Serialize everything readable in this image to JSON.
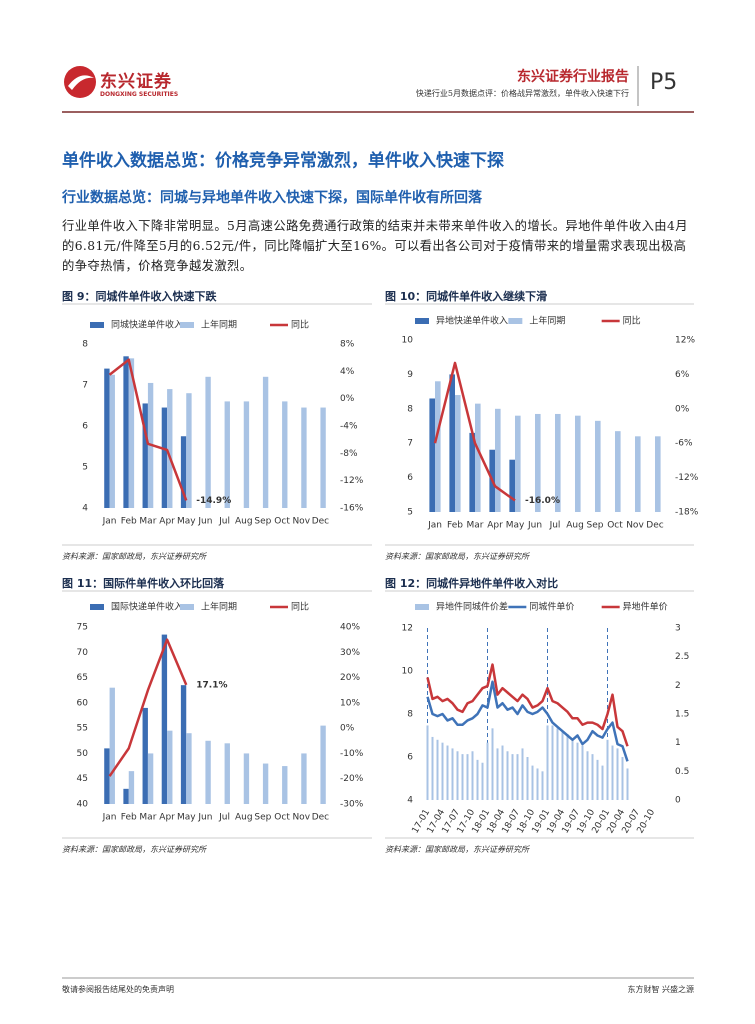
{
  "header": {
    "logo_name": "东兴证券",
    "logo_en": "DONGXING SECURITIES",
    "report_type": "东兴证券行业报告",
    "subtitle": "快递行业5月数据点评：价格战异常激烈，单件收入快速下行",
    "page": "P5"
  },
  "section_title": "单件收入数据总览：价格竞争异常激烈，单件收入快速下探",
  "subsection_title": "行业数据总览：同城与异地单件收入快速下探，国际单件收有所回落",
  "paragraph": "行业单件收入下降非常明显。5月高速公路免费通行政策的结束并未带来单件收入的增长。异地件单件收入由4月的6.81元/件降至5月的6.52元/件，同比降幅扩大至16%。可以看出各公司对于疫情带来的增量需求表现出极高的争夺热情，价格竞争越发激烈。",
  "figure_titles": [
    "图 9：同城件单件收入快速下跌",
    "图 10：同城件单件收入继续下滑",
    "图 11：国际件单件收入环比回落",
    "图 12：同城件异地件单件收入对比"
  ],
  "sources": [
    "资料来源：国家邮政局，东兴证券研究所",
    "资料来源：国家邮政局，东兴证券研究所",
    "资料来源：国家邮政局，东兴证券研究所",
    "资料来源：国家邮政局，东兴证券研究所"
  ],
  "footer": {
    "left": "敬请参阅报告结尾处的免责声明",
    "right": "东方财智 兴盛之源"
  },
  "chart_data": [
    {
      "type": "combo",
      "categories": [
        "Jan",
        "Feb",
        "Mar",
        "Apr",
        "May",
        "Jun",
        "Jul",
        "Aug",
        "Sep",
        "Oct",
        "Nov",
        "Dec"
      ],
      "ylim": [
        4,
        8
      ],
      "yticks": [
        4,
        5,
        6,
        7,
        8
      ],
      "y2lim": [
        -16,
        8
      ],
      "y2ticks": [
        {
          "value": -16,
          "label": "-16%"
        },
        {
          "value": -12,
          "label": "-12%"
        },
        {
          "value": -8,
          "label": "-8%"
        },
        {
          "value": -4,
          "label": "-4%"
        },
        {
          "value": 0,
          "label": "0%"
        },
        {
          "value": 4,
          "label": "4%"
        },
        {
          "value": 8,
          "label": "8%"
        }
      ],
      "series": [
        {
          "name": "同城快递单件收入",
          "type": "bar",
          "color": "#3b6db3",
          "values": [
            7.4,
            7.7,
            6.55,
            6.45,
            5.75,
            null,
            null,
            null,
            null,
            null,
            null,
            null
          ]
        },
        {
          "name": "上年同期",
          "type": "bar",
          "color": "#a9c3e4",
          "values": [
            7.25,
            7.65,
            7.05,
            6.9,
            6.8,
            7.2,
            6.6,
            6.6,
            7.2,
            6.6,
            6.45,
            6.45
          ]
        },
        {
          "name": "同比",
          "type": "line",
          "axis": "y2",
          "color": "#c8373a",
          "values": [
            3.5,
            5.7,
            -6.6,
            -7.5,
            -14.9,
            null,
            null,
            null,
            null,
            null,
            null,
            null
          ],
          "value_labels": [
            null,
            null,
            null,
            null,
            "-14.9%",
            null,
            null,
            null,
            null,
            null,
            null,
            null
          ]
        }
      ]
    },
    {
      "type": "combo",
      "categories": [
        "Jan",
        "Feb",
        "Mar",
        "Apr",
        "May",
        "Jun",
        "Jul",
        "Aug",
        "Sep",
        "Oct",
        "Nov",
        "Dec"
      ],
      "ylim": [
        5,
        10
      ],
      "yticks": [
        5,
        6,
        7,
        8,
        9,
        10
      ],
      "y2lim": [
        -18,
        12
      ],
      "y2ticks": [
        {
          "value": -18,
          "label": "-18%"
        },
        {
          "value": -12,
          "label": "-12%"
        },
        {
          "value": -6,
          "label": "-6%"
        },
        {
          "value": 0,
          "label": "0%"
        },
        {
          "value": 6,
          "label": "6%"
        },
        {
          "value": 12,
          "label": "12%"
        }
      ],
      "series": [
        {
          "name": "异地快递单件收入",
          "type": "bar",
          "color": "#3b6db3",
          "values": [
            8.3,
            9.0,
            7.3,
            6.81,
            6.52,
            null,
            null,
            null,
            null,
            null,
            null,
            null
          ]
        },
        {
          "name": "上年同期",
          "type": "bar",
          "color": "#a9c3e4",
          "values": [
            8.8,
            8.4,
            8.15,
            8.0,
            7.8,
            7.85,
            7.85,
            7.8,
            7.65,
            7.35,
            7.2,
            7.2
          ]
        },
        {
          "name": "同比",
          "type": "line",
          "axis": "y2",
          "color": "#c8373a",
          "values": [
            -6,
            8,
            -6,
            -13.5,
            -16.0,
            null,
            null,
            null,
            null,
            null,
            null,
            null
          ],
          "value_labels": [
            null,
            null,
            null,
            null,
            "-16.0%",
            null,
            null,
            null,
            null,
            null,
            null,
            null
          ]
        }
      ]
    },
    {
      "type": "combo",
      "categories": [
        "Jan",
        "Feb",
        "Mar",
        "Apr",
        "May",
        "Jun",
        "Jul",
        "Aug",
        "Sep",
        "Oct",
        "Nov",
        "Dec"
      ],
      "ylim": [
        40,
        75
      ],
      "yticks": [
        40,
        45,
        50,
        55,
        60,
        65,
        70,
        75
      ],
      "y2lim": [
        -30,
        40
      ],
      "y2ticks": [
        {
          "value": -30,
          "label": "-30%"
        },
        {
          "value": -20,
          "label": "-20%"
        },
        {
          "value": -10,
          "label": "-10%"
        },
        {
          "value": 0,
          "label": "0%"
        },
        {
          "value": 10,
          "label": "10%"
        },
        {
          "value": 20,
          "label": "20%"
        },
        {
          "value": 30,
          "label": "30%"
        },
        {
          "value": 40,
          "label": "40%"
        }
      ],
      "series": [
        {
          "name": "国际快递单件收入",
          "type": "bar",
          "color": "#3b6db3",
          "values": [
            51,
            43,
            59,
            73.5,
            63.5,
            null,
            null,
            null,
            null,
            null,
            null,
            null
          ]
        },
        {
          "name": "上年同期",
          "type": "bar",
          "color": "#a9c3e4",
          "values": [
            63,
            46.5,
            50,
            54.5,
            54,
            52.5,
            52,
            50,
            48,
            47.5,
            50,
            55.5
          ]
        },
        {
          "name": "同比",
          "type": "line",
          "axis": "y2",
          "color": "#c8373a",
          "values": [
            -19,
            -8,
            15,
            35,
            17.1,
            null,
            null,
            null,
            null,
            null,
            null,
            null
          ],
          "value_labels": [
            null,
            null,
            null,
            null,
            "17.1%",
            null,
            null,
            null,
            null,
            null,
            null,
            null
          ]
        }
      ]
    },
    {
      "type": "combo",
      "categories": [
        "17-01",
        null,
        null,
        "17-04",
        null,
        null,
        "17-07",
        null,
        null,
        "17-10",
        null,
        null,
        "18-01",
        null,
        null,
        "18-04",
        null,
        null,
        "18-07",
        null,
        null,
        "18-10",
        null,
        null,
        "19-01",
        null,
        null,
        "19-04",
        null,
        null,
        "19-07",
        null,
        null,
        "19-10",
        null,
        null,
        "20-01",
        null,
        null,
        "20-04",
        null,
        null,
        "20-07",
        null,
        null,
        "20-10",
        null,
        null
      ],
      "ylim": [
        4,
        12
      ],
      "yticks": [
        4,
        6,
        8,
        10,
        12
      ],
      "y2lim": [
        0,
        3
      ],
      "y2ticks": [
        0,
        0.5,
        1,
        1.5,
        2,
        2.5,
        3
      ],
      "series": [
        {
          "name": "异地件同城件价差",
          "type": "bar",
          "axis": "y2",
          "color": "#a9c3e4",
          "values": [
            1.3,
            1.1,
            1.05,
            1.0,
            0.95,
            0.9,
            0.85,
            0.8,
            0.8,
            0.85,
            0.7,
            0.65,
            1.0,
            1.25,
            0.9,
            0.95,
            0.85,
            0.8,
            0.8,
            0.9,
            0.75,
            0.6,
            0.55,
            0.5,
            1.3,
            1.3,
            1.25,
            1.2,
            1.15,
            1.05,
            1.0,
            0.95,
            0.85,
            0.8,
            0.7,
            0.6,
            1.05,
            0.95,
            0.9,
            0.75,
            0.55,
            null,
            null,
            null,
            null,
            null,
            null,
            null
          ]
        },
        {
          "name": "同城件单价",
          "type": "line",
          "color": "#3f73b8",
          "values": [
            8.8,
            8.0,
            7.9,
            8.0,
            7.7,
            7.8,
            7.5,
            7.5,
            7.7,
            7.8,
            8.0,
            8.4,
            8.3,
            9.5,
            8.3,
            8.5,
            8.2,
            8.3,
            8.0,
            8.4,
            8.1,
            8.0,
            8.1,
            8.3,
            8.0,
            7.6,
            7.4,
            7.2,
            7.0,
            6.8,
            7.0,
            6.6,
            6.8,
            7.2,
            7.0,
            6.9,
            7.3,
            7.6,
            6.6,
            6.5,
            5.8,
            null,
            null,
            null,
            null,
            null,
            null,
            null
          ]
        },
        {
          "name": "异地件单价",
          "type": "line",
          "color": "#c8373a",
          "values": [
            9.7,
            8.7,
            8.8,
            8.6,
            8.7,
            8.5,
            8.2,
            8.1,
            8.5,
            8.6,
            8.9,
            9.2,
            9.3,
            10.3,
            8.9,
            9.2,
            9.0,
            8.8,
            8.6,
            8.9,
            8.7,
            8.3,
            8.4,
            8.6,
            9.2,
            8.6,
            8.5,
            8.3,
            8.1,
            7.8,
            7.8,
            7.5,
            7.6,
            7.6,
            7.5,
            7.3,
            8.0,
            8.9,
            7.4,
            7.2,
            6.5,
            null,
            null,
            null,
            null,
            null,
            null,
            null
          ]
        }
      ]
    }
  ]
}
